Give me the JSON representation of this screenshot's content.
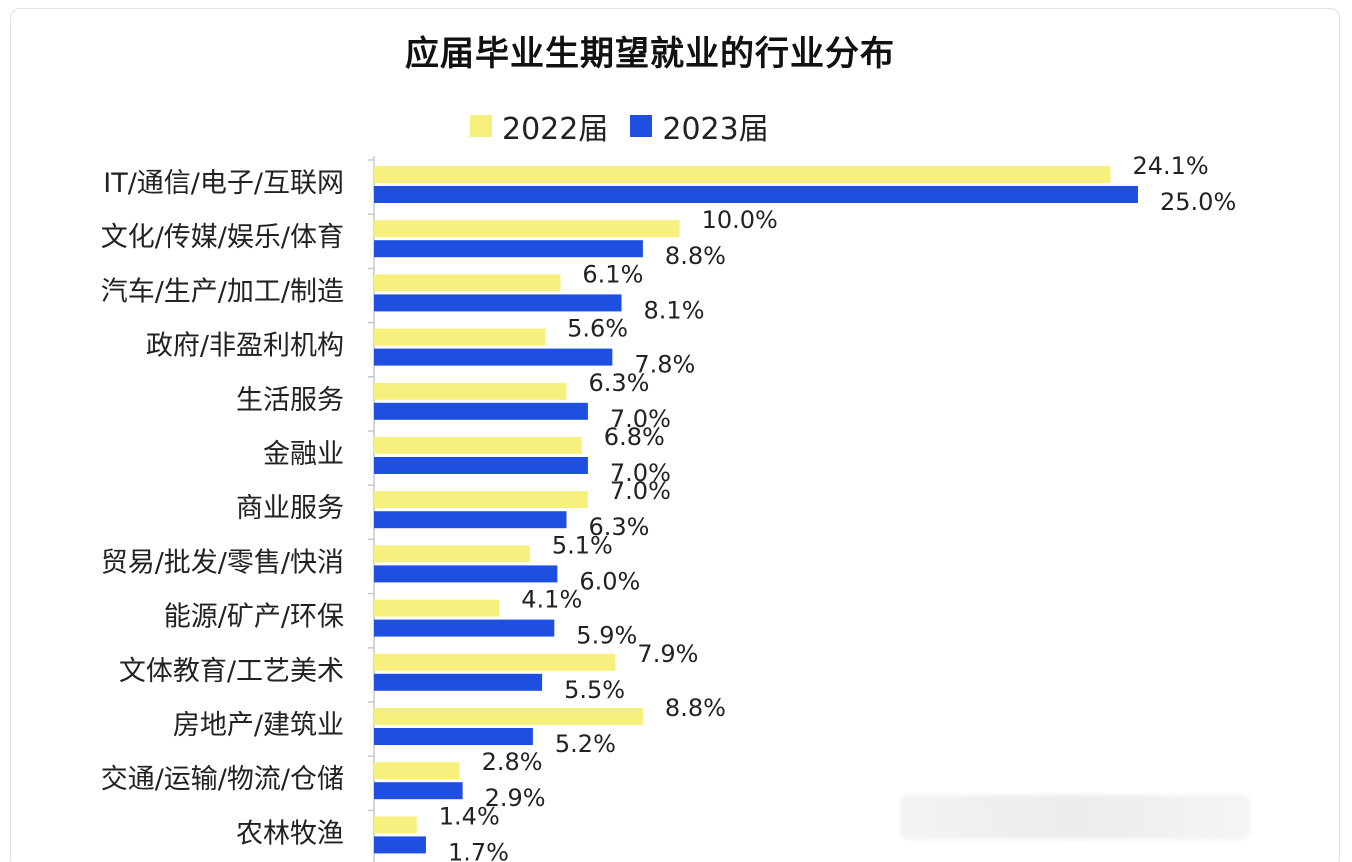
{
  "colors": {
    "series_2022": "#f7f07e",
    "series_2023": "#1f4fe0",
    "axis": "#c8c8c8",
    "label_text": "#222222"
  },
  "chart_data": {
    "type": "bar",
    "orientation": "horizontal",
    "title": "应届毕业生期望就业的行业分布",
    "legend_position": "top",
    "categories": [
      "IT/通信/电子/互联网",
      "文化/传媒/娱乐/体育",
      "汽车/生产/加工/制造",
      "政府/非盈利机构",
      "生活服务",
      "金融业",
      "商业服务",
      "贸易/批发/零售/快消",
      "能源/矿产/环保",
      "文体教育/工艺美术",
      "房地产/建筑业",
      "交通/运输/物流/仓储",
      "农林牧渔"
    ],
    "series": [
      {
        "name": "2022届",
        "values": [
          24.1,
          10.0,
          6.1,
          5.6,
          6.3,
          6.8,
          7.0,
          5.1,
          4.1,
          7.9,
          8.8,
          2.8,
          1.4
        ],
        "labels": [
          "24.1%",
          "10.0%",
          "6.1%",
          "5.6%",
          "6.3%",
          "6.8%",
          "7.0%",
          "5.1%",
          "4.1%",
          "7.9%",
          "8.8%",
          "2.8%",
          "1.4%"
        ]
      },
      {
        "name": "2023届",
        "values": [
          25.0,
          8.8,
          8.1,
          7.8,
          7.0,
          7.0,
          6.3,
          6.0,
          5.9,
          5.5,
          5.2,
          2.9,
          1.7
        ],
        "labels": [
          "25.0%",
          "8.8%",
          "8.1%",
          "7.8%",
          "7.0%",
          "7.0%",
          "6.3%",
          "6.0%",
          "5.9%",
          "5.5%",
          "5.2%",
          "2.9%",
          "1.7%"
        ]
      }
    ],
    "xlim": [
      0,
      25
    ],
    "grid": false,
    "xlabel": "",
    "ylabel": ""
  }
}
